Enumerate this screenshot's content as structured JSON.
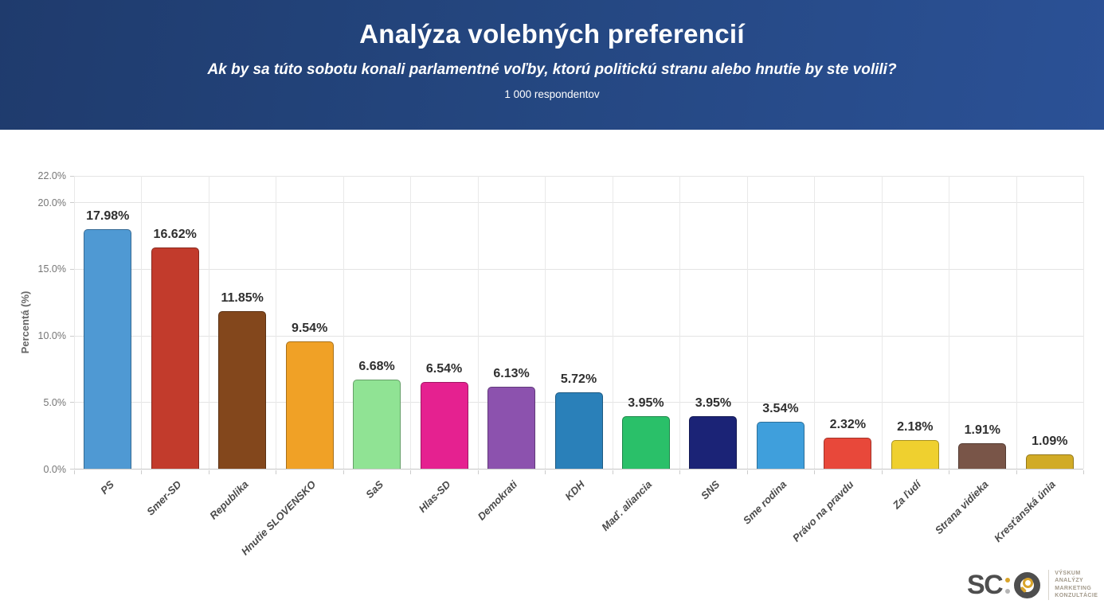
{
  "header": {
    "title": "Analýza volebných preferencií",
    "subtitle": "Ak by sa túto sobotu konali parlamentné voľby, ktorú politickú stranu alebo hnutie by ste volili?",
    "respondents": "1 000 respondentov",
    "bg_gradient": [
      "#1f3b6d",
      "#2b5196"
    ]
  },
  "chart_data": {
    "type": "bar",
    "title": "Analýza volebných preferencií",
    "xlabel": "",
    "ylabel": "Percentá (%)",
    "ylim": [
      0,
      22
    ],
    "grid": true,
    "yticks": [
      0,
      5,
      10,
      15,
      20,
      22
    ],
    "ytick_labels": [
      "0.0%",
      "5.0%",
      "10.0%",
      "15.0%",
      "20.0%",
      "22.0%"
    ],
    "categories": [
      "PS",
      "Smer-SD",
      "Republika",
      "Hnutie SLOVENSKO",
      "SaS",
      "Hlas-SD",
      "Demokrati",
      "KDH",
      "Maď. aliancia",
      "SNS",
      "Sme rodina",
      "Právo na pravdu",
      "Za ľudí",
      "Strana vidieka",
      "Kresťanská únia"
    ],
    "values": [
      17.98,
      16.62,
      11.85,
      9.54,
      6.68,
      6.54,
      6.13,
      5.72,
      3.95,
      3.95,
      3.54,
      2.32,
      2.18,
      1.91,
      1.09
    ],
    "value_labels": [
      "17.98%",
      "16.62%",
      "11.85%",
      "9.54%",
      "6.68%",
      "6.54%",
      "6.13%",
      "5.72%",
      "3.95%",
      "3.95%",
      "3.54%",
      "2.32%",
      "2.18%",
      "1.91%",
      "1.09%"
    ],
    "colors": [
      "#4f99d3",
      "#c23b2c",
      "#83471c",
      "#f0a126",
      "#90e394",
      "#e52190",
      "#8c52ae",
      "#2a80b9",
      "#2ac069",
      "#1b2376",
      "#3f9fdc",
      "#e8483a",
      "#efd02f",
      "#795548",
      "#d1ab26"
    ]
  },
  "logo": {
    "text_sc": "SC",
    "tagline_lines": [
      "VÝSKUM",
      "ANALÝZY",
      "MARKETING",
      "KONZULTÁCIE"
    ],
    "accent_color": "#d9a42b",
    "dark_color": "#4e4e4e"
  }
}
